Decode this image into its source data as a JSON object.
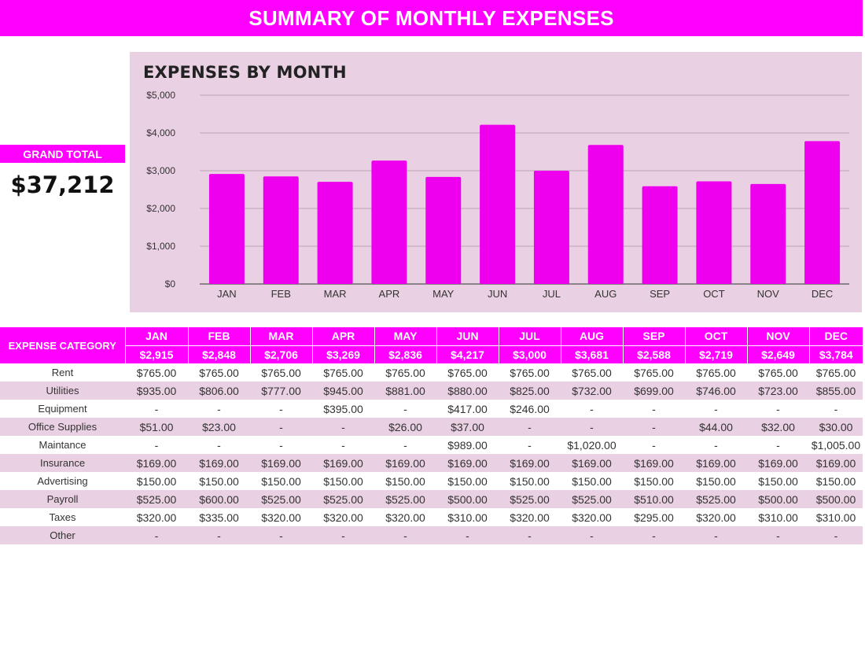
{
  "header": {
    "title": "SUMMARY OF MONTHLY EXPENSES"
  },
  "grand_total": {
    "label": "GRAND TOTAL",
    "value": "$37,212"
  },
  "colors": {
    "accent": "#ff00ff",
    "panel": "#ead0e3",
    "bar": "#ee00ee"
  },
  "chart_data": {
    "type": "bar",
    "title": "EXPENSES BY MONTH",
    "categories": [
      "JAN",
      "FEB",
      "MAR",
      "APR",
      "MAY",
      "JUN",
      "JUL",
      "AUG",
      "SEP",
      "OCT",
      "NOV",
      "DEC"
    ],
    "values": [
      2915,
      2848,
      2706,
      3269,
      2836,
      4217,
      3000,
      3681,
      2588,
      2719,
      2649,
      3784
    ],
    "ylim": [
      0,
      5000
    ],
    "yticks": [
      0,
      1000,
      2000,
      3000,
      4000,
      5000
    ],
    "ytick_labels": [
      "$0",
      "$1,000",
      "$2,000",
      "$3,000",
      "$4,000",
      "$5,000"
    ],
    "grid": true,
    "legend": "none"
  },
  "table": {
    "category_header": "EXPENSE CATEGORY",
    "months": [
      "JAN",
      "FEB",
      "MAR",
      "APR",
      "MAY",
      "JUN",
      "JUL",
      "AUG",
      "SEP",
      "OCT",
      "NOV",
      "DEC"
    ],
    "totals": [
      "$2,915",
      "$2,848",
      "$2,706",
      "$3,269",
      "$2,836",
      "$4,217",
      "$3,000",
      "$3,681",
      "$2,588",
      "$2,719",
      "$2,649",
      "$3,784"
    ],
    "rows": [
      {
        "category": "Rent",
        "values": [
          "$765.00",
          "$765.00",
          "$765.00",
          "$765.00",
          "$765.00",
          "$765.00",
          "$765.00",
          "$765.00",
          "$765.00",
          "$765.00",
          "$765.00",
          "$765.00"
        ]
      },
      {
        "category": "Utilities",
        "values": [
          "$935.00",
          "$806.00",
          "$777.00",
          "$945.00",
          "$881.00",
          "$880.00",
          "$825.00",
          "$732.00",
          "$699.00",
          "$746.00",
          "$723.00",
          "$855.00"
        ]
      },
      {
        "category": "Equipment",
        "values": [
          "-",
          "-",
          "-",
          "$395.00",
          "-",
          "$417.00",
          "$246.00",
          "-",
          "-",
          "-",
          "-",
          "-"
        ]
      },
      {
        "category": "Office Supplies",
        "values": [
          "$51.00",
          "$23.00",
          "-",
          "-",
          "$26.00",
          "$37.00",
          "-",
          "-",
          "-",
          "$44.00",
          "$32.00",
          "$30.00"
        ]
      },
      {
        "category": "Maintance",
        "values": [
          "-",
          "-",
          "-",
          "-",
          "-",
          "$989.00",
          "-",
          "$1,020.00",
          "-",
          "-",
          "-",
          "$1,005.00"
        ]
      },
      {
        "category": "Insurance",
        "values": [
          "$169.00",
          "$169.00",
          "$169.00",
          "$169.00",
          "$169.00",
          "$169.00",
          "$169.00",
          "$169.00",
          "$169.00",
          "$169.00",
          "$169.00",
          "$169.00"
        ]
      },
      {
        "category": "Advertising",
        "values": [
          "$150.00",
          "$150.00",
          "$150.00",
          "$150.00",
          "$150.00",
          "$150.00",
          "$150.00",
          "$150.00",
          "$150.00",
          "$150.00",
          "$150.00",
          "$150.00"
        ]
      },
      {
        "category": "Payroll",
        "values": [
          "$525.00",
          "$600.00",
          "$525.00",
          "$525.00",
          "$525.00",
          "$500.00",
          "$525.00",
          "$525.00",
          "$510.00",
          "$525.00",
          "$500.00",
          "$500.00"
        ]
      },
      {
        "category": "Taxes",
        "values": [
          "$320.00",
          "$335.00",
          "$320.00",
          "$320.00",
          "$320.00",
          "$310.00",
          "$320.00",
          "$320.00",
          "$295.00",
          "$320.00",
          "$310.00",
          "$310.00"
        ]
      },
      {
        "category": "Other",
        "values": [
          "-",
          "-",
          "-",
          "-",
          "-",
          "-",
          "-",
          "-",
          "-",
          "-",
          "-",
          "-"
        ]
      }
    ]
  }
}
